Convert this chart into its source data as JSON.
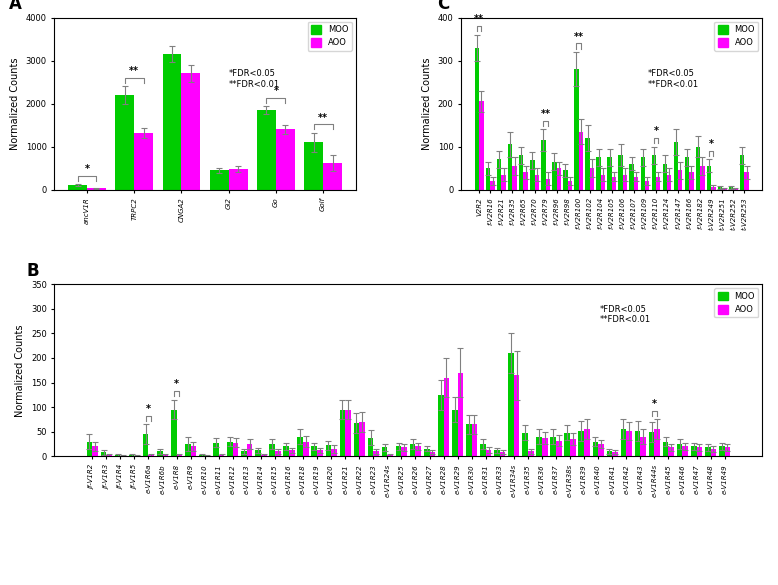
{
  "panel_A": {
    "categories": [
      "ancV1R",
      "TRPC2",
      "CNGA2",
      "Gi2",
      "Go",
      "Golf"
    ],
    "MOO": [
      100,
      2200,
      3150,
      450,
      1850,
      1100
    ],
    "AOO": [
      30,
      1320,
      2700,
      480,
      1400,
      620
    ],
    "MOO_err": [
      20,
      200,
      180,
      60,
      90,
      220
    ],
    "AOO_err": [
      15,
      120,
      200,
      70,
      100,
      180
    ],
    "sig": [
      "*",
      "**",
      null,
      null,
      "*",
      "**"
    ],
    "ylim": [
      0,
      4000
    ],
    "yticks": [
      0,
      1000,
      2000,
      3000,
      4000
    ],
    "ylabel": "Normalized Counts",
    "label": "A"
  },
  "panel_C": {
    "categories": [
      "V2R2",
      "f-V2R16",
      "f-V2R21",
      "f-V2R35",
      "f-V2R65",
      "f-V2R70",
      "f-V2R79",
      "f-V2R96",
      "f-V2R98",
      "f-V2R100",
      "f-V2R102",
      "f-V2R104",
      "f-V2R105",
      "f-V2R106",
      "f-V2R107",
      "f-V2R109",
      "f-V2R110",
      "f-V2R124",
      "f-V2R147",
      "f-V2R166",
      "f-V2R182",
      "t-V2R249",
      "t-V2R251",
      "t-V2R252",
      "t-V2R253"
    ],
    "MOO": [
      330,
      50,
      70,
      105,
      80,
      68,
      115,
      65,
      45,
      280,
      120,
      75,
      75,
      80,
      60,
      75,
      80,
      60,
      110,
      75,
      100,
      55,
      5,
      5,
      80
    ],
    "AOO": [
      205,
      20,
      35,
      55,
      40,
      35,
      25,
      50,
      20,
      135,
      50,
      35,
      30,
      35,
      30,
      20,
      30,
      35,
      45,
      40,
      55,
      5,
      2,
      2,
      40
    ],
    "MOO_err": [
      30,
      15,
      20,
      30,
      20,
      20,
      25,
      20,
      15,
      40,
      30,
      20,
      20,
      25,
      15,
      20,
      20,
      20,
      30,
      20,
      25,
      15,
      3,
      3,
      20
    ],
    "AOO_err": [
      25,
      10,
      15,
      20,
      15,
      15,
      15,
      15,
      10,
      30,
      20,
      15,
      10,
      15,
      10,
      10,
      10,
      15,
      20,
      15,
      20,
      5,
      2,
      2,
      15
    ],
    "sig": [
      "**",
      null,
      null,
      null,
      null,
      null,
      "**",
      null,
      null,
      "**",
      null,
      null,
      null,
      null,
      null,
      null,
      "*",
      null,
      null,
      null,
      null,
      "*",
      null,
      null,
      null
    ],
    "ylim": [
      0,
      400
    ],
    "yticks": [
      0,
      100,
      200,
      300,
      400
    ],
    "ylabel": "Normalized Counts",
    "label": "C"
  },
  "panel_B": {
    "categories": [
      "jf-V1R2",
      "jf-V1R3",
      "jf-V1R4",
      "jf-V1R5",
      "e-V1R6a",
      "e-V1R6b",
      "e-V1R8",
      "e-V1R9",
      "e-V1R10",
      "e-V1R11",
      "e-V1R12",
      "e-V1R13",
      "e-V1R14",
      "e-V1R15",
      "e-V1R16",
      "e-V1R18",
      "e-V1R19",
      "e-V1R20",
      "e-V1R21",
      "e-V1R22",
      "e-V1R23",
      "e-V1R24s",
      "e-V1R25",
      "e-V1R26",
      "e-V1R27",
      "e-V1R28",
      "e-V1R29",
      "e-V1R30",
      "e-V1R31",
      "e-V1R33",
      "e-V1R34s",
      "e-V1R35",
      "e-V1R36",
      "e-V1R37",
      "e-V1R38s",
      "e-V1R39",
      "e-V1R40",
      "e-V1R41",
      "e-V1R42",
      "e-V1R43",
      "e-V1R44s",
      "e-V1R45",
      "e-V1R46",
      "e-V1R47",
      "e-V1R48",
      "e-V1R49"
    ],
    "MOO": [
      30,
      8,
      2,
      2,
      45,
      10,
      95,
      25,
      2,
      28,
      30,
      10,
      12,
      25,
      20,
      40,
      20,
      22,
      95,
      68,
      38,
      18,
      20,
      25,
      15,
      125,
      95,
      65,
      25,
      12,
      210,
      48,
      40,
      40,
      48,
      52,
      30,
      10,
      55,
      52,
      50,
      30,
      25,
      20,
      18,
      20
    ],
    "AOO": [
      20,
      2,
      1,
      1,
      2,
      2,
      2,
      20,
      2,
      2,
      28,
      25,
      2,
      10,
      12,
      30,
      12,
      15,
      95,
      70,
      10,
      2,
      18,
      20,
      8,
      160,
      170,
      65,
      12,
      8,
      165,
      10,
      38,
      32,
      35,
      55,
      25,
      8,
      52,
      40,
      55,
      18,
      20,
      18,
      15,
      18
    ],
    "MOO_err": [
      15,
      5,
      2,
      2,
      20,
      5,
      20,
      15,
      2,
      10,
      10,
      5,
      5,
      10,
      8,
      15,
      8,
      10,
      20,
      20,
      15,
      8,
      8,
      10,
      5,
      30,
      25,
      20,
      10,
      5,
      40,
      15,
      15,
      15,
      15,
      20,
      10,
      5,
      20,
      20,
      20,
      10,
      10,
      8,
      8,
      8
    ],
    "AOO_err": [
      10,
      3,
      1,
      1,
      3,
      3,
      3,
      10,
      1,
      3,
      10,
      10,
      2,
      5,
      5,
      12,
      5,
      8,
      20,
      20,
      5,
      2,
      8,
      8,
      4,
      40,
      50,
      20,
      6,
      4,
      50,
      5,
      12,
      12,
      12,
      20,
      8,
      4,
      18,
      15,
      20,
      8,
      8,
      8,
      6,
      8
    ],
    "sig": [
      null,
      null,
      null,
      null,
      "*",
      null,
      "*",
      null,
      null,
      null,
      null,
      null,
      null,
      null,
      null,
      null,
      null,
      null,
      null,
      null,
      null,
      null,
      null,
      null,
      null,
      null,
      null,
      null,
      null,
      null,
      null,
      null,
      null,
      null,
      null,
      null,
      null,
      null,
      null,
      null,
      "*",
      null,
      null,
      null,
      null,
      null
    ],
    "ylim": [
      0,
      350
    ],
    "yticks": [
      0,
      50,
      100,
      150,
      200,
      250,
      300,
      350
    ],
    "ylabel": "Normalized Counts",
    "label": "B"
  },
  "moo_color": "#00CC00",
  "aoo_color": "#FF00FF",
  "bar_width": 0.4
}
